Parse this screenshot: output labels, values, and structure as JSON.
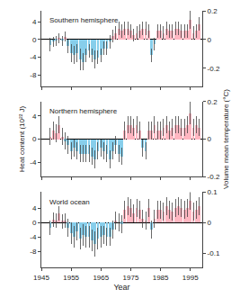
{
  "chart_data": [
    {
      "type": "bar",
      "title": "Southern hemisphere",
      "x": [
        1948,
        1949,
        1950,
        1951,
        1952,
        1953,
        1954,
        1955,
        1956,
        1957,
        1958,
        1959,
        1960,
        1961,
        1962,
        1963,
        1964,
        1965,
        1966,
        1967,
        1968,
        1969,
        1970,
        1971,
        1972,
        1973,
        1974,
        1975,
        1976,
        1977,
        1978,
        1979,
        1980,
        1981,
        1982,
        1983,
        1984,
        1985,
        1986,
        1987,
        1988,
        1989,
        1990,
        1991,
        1992,
        1993,
        1994,
        1995,
        1996,
        1997,
        1998
      ],
      "values": [
        -1.2,
        -0.5,
        -0.3,
        0.3,
        -0.3,
        0.7,
        -1.5,
        -3.0,
        -3.5,
        -3.0,
        -4.5,
        -5.0,
        -3.5,
        -2.5,
        -3.5,
        -4.5,
        -4.0,
        -3.5,
        -2.0,
        -2.0,
        -0.5,
        0.8,
        1.5,
        2.5,
        2.0,
        2.5,
        2.5,
        2.0,
        1.0,
        1.5,
        2.0,
        2.5,
        2.5,
        2.0,
        -3.5,
        -1.0,
        2.0,
        2.0,
        1.5,
        2.5,
        2.0,
        2.0,
        2.5,
        2.5,
        2.0,
        2.0,
        2.0,
        4.5,
        1.5,
        2.0,
        3.5
      ],
      "errors": [
        1.5,
        1.2,
        1.2,
        1.2,
        1.2,
        1.2,
        1.5,
        2.0,
        2.0,
        2.0,
        2.5,
        2.0,
        1.5,
        1.5,
        1.5,
        2.0,
        1.5,
        1.5,
        1.5,
        1.5,
        1.5,
        1.5,
        1.5,
        1.5,
        1.5,
        1.5,
        1.5,
        1.5,
        1.5,
        1.5,
        1.5,
        1.5,
        1.5,
        1.5,
        1.5,
        1.5,
        1.5,
        1.5,
        1.5,
        1.5,
        1.5,
        1.5,
        1.5,
        1.5,
        1.5,
        1.5,
        1.5,
        2.0,
        1.5,
        1.5,
        1.5
      ],
      "colors": [
        "#87CEEB",
        "#87CEEB",
        "#87CEEB",
        "#FFB6C1",
        "#87CEEB",
        "#FFB6C1",
        "#87CEEB",
        "#87CEEB",
        "#87CEEB",
        "#87CEEB",
        "#87CEEB",
        "#87CEEB",
        "#87CEEB",
        "#87CEEB",
        "#87CEEB",
        "#87CEEB",
        "#87CEEB",
        "#87CEEB",
        "#87CEEB",
        "#87CEEB",
        "#87CEEB",
        "#FFB6C1",
        "#FFB6C1",
        "#FFB6C1",
        "#FFB6C1",
        "#FFB6C1",
        "#FFB6C1",
        "#FFB6C1",
        "#FFB6C1",
        "#FFB6C1",
        "#FFB6C1",
        "#FFB6C1",
        "#FFB6C1",
        "#FFB6C1",
        "#87CEEB",
        "#87CEEB",
        "#FFB6C1",
        "#FFB6C1",
        "#FFB6C1",
        "#FFB6C1",
        "#FFB6C1",
        "#FFB6C1",
        "#FFB6C1",
        "#FFB6C1",
        "#FFB6C1",
        "#FFB6C1",
        "#FFB6C1",
        "#FFB6C1",
        "#FFB6C1",
        "#FFB6C1",
        "#FFB6C1"
      ],
      "xlim": [
        1945,
        1999
      ],
      "xticks": [
        1945,
        1955,
        1965,
        1975,
        1985,
        1995
      ],
      "ylim": [
        -10.5,
        6.5
      ],
      "yticks": [
        -8,
        -4,
        0,
        4
      ],
      "y2lim": [
        -0.3230769230769231,
        0.2
      ],
      "y2ticks": [
        -0.2,
        0,
        0.2
      ],
      "grid": false,
      "tick_labels": "y"
    },
    {
      "type": "bar",
      "title": "Northern hemisphere",
      "ylabel": "Heat content (10²² J)",
      "y2label": "Volume mean temperature (°C)",
      "x": [
        1948,
        1949,
        1950,
        1951,
        1952,
        1953,
        1954,
        1955,
        1956,
        1957,
        1958,
        1959,
        1960,
        1961,
        1962,
        1963,
        1964,
        1965,
        1966,
        1967,
        1968,
        1969,
        1970,
        1971,
        1972,
        1973,
        1974,
        1975,
        1976,
        1977,
        1978,
        1979,
        1980,
        1981,
        1982,
        1983,
        1984,
        1985,
        1986,
        1987,
        1988,
        1989,
        1990,
        1991,
        1992,
        1993,
        1994,
        1995,
        1996,
        1997,
        1998
      ],
      "values": [
        0.5,
        1.5,
        1.0,
        2.5,
        0.5,
        -0.3,
        -1.0,
        -2.0,
        -1.5,
        -2.0,
        -2.5,
        -2.5,
        -2.5,
        -2.5,
        -3.0,
        -3.5,
        -2.0,
        -1.5,
        -2.0,
        -2.5,
        -3.5,
        -2.0,
        -1.0,
        -2.5,
        -3.0,
        1.5,
        2.5,
        2.5,
        2.0,
        2.5,
        1.5,
        -1.5,
        -2.0,
        1.5,
        1.5,
        2.5,
        1.5,
        1.5,
        2.0,
        2.5,
        1.5,
        2.0,
        2.5,
        2.5,
        2.0,
        2.0,
        2.5,
        4.5,
        2.0,
        2.5,
        2.0
      ],
      "errors": [
        1.5,
        1.5,
        1.5,
        1.5,
        1.5,
        1.5,
        1.5,
        1.5,
        1.5,
        1.5,
        1.5,
        1.5,
        1.5,
        1.5,
        1.5,
        1.5,
        1.5,
        1.5,
        1.5,
        1.5,
        1.5,
        1.5,
        1.5,
        1.5,
        1.5,
        1.5,
        1.5,
        1.5,
        1.5,
        1.5,
        1.5,
        1.5,
        1.5,
        1.5,
        1.5,
        1.5,
        1.5,
        1.5,
        1.5,
        1.5,
        1.5,
        1.5,
        1.5,
        1.5,
        1.5,
        1.5,
        1.5,
        2.0,
        1.5,
        1.5,
        1.5
      ],
      "colors": [
        "#FFB6C1",
        "#FFB6C1",
        "#FFB6C1",
        "#FFB6C1",
        "#FFB6C1",
        "#87CEEB",
        "#87CEEB",
        "#87CEEB",
        "#87CEEB",
        "#87CEEB",
        "#87CEEB",
        "#87CEEB",
        "#87CEEB",
        "#87CEEB",
        "#87CEEB",
        "#87CEEB",
        "#87CEEB",
        "#87CEEB",
        "#87CEEB",
        "#87CEEB",
        "#87CEEB",
        "#87CEEB",
        "#87CEEB",
        "#87CEEB",
        "#87CEEB",
        "#FFB6C1",
        "#FFB6C1",
        "#FFB6C1",
        "#FFB6C1",
        "#FFB6C1",
        "#FFB6C1",
        "#87CEEB",
        "#87CEEB",
        "#FFB6C1",
        "#FFB6C1",
        "#FFB6C1",
        "#FFB6C1",
        "#FFB6C1",
        "#FFB6C1",
        "#FFB6C1",
        "#FFB6C1",
        "#FFB6C1",
        "#FFB6C1",
        "#FFB6C1",
        "#FFB6C1",
        "#FFB6C1",
        "#FFB6C1",
        "#FFB6C1",
        "#FFB6C1",
        "#FFB6C1",
        "#FFB6C1"
      ],
      "xlim": [
        1945,
        1999
      ],
      "xticks": [
        1945,
        1955,
        1965,
        1975,
        1985,
        1995
      ],
      "ylim": [
        -6.5,
        6.5
      ],
      "yticks": [
        -4,
        0,
        4
      ],
      "y2lim": [
        -0.2,
        0.2
      ],
      "y2ticks": [
        -0.2,
        0,
        0.2
      ],
      "grid": false,
      "tick_labels": "y"
    },
    {
      "type": "bar",
      "title": "World ocean",
      "xlabel": "Year",
      "x": [
        1948,
        1949,
        1950,
        1951,
        1952,
        1953,
        1954,
        1955,
        1956,
        1957,
        1958,
        1959,
        1960,
        1961,
        1962,
        1963,
        1964,
        1965,
        1966,
        1967,
        1968,
        1969,
        1970,
        1971,
        1972,
        1973,
        1974,
        1975,
        1976,
        1977,
        1978,
        1979,
        1980,
        1981,
        1982,
        1983,
        1984,
        1985,
        1986,
        1987,
        1988,
        1989,
        1990,
        1991,
        1992,
        1993,
        1994,
        1995,
        1996,
        1997,
        1998
      ],
      "values": [
        -1.5,
        0.8,
        0.5,
        2.5,
        0.3,
        0.5,
        -1.5,
        -3.0,
        -4.0,
        -2.5,
        -4.5,
        -3.5,
        -4.0,
        -4.0,
        -5.0,
        -6.0,
        -4.5,
        -4.0,
        -3.5,
        -4.0,
        -4.0,
        -2.0,
        0.5,
        0.0,
        -0.5,
        3.5,
        4.5,
        4.0,
        2.5,
        4.0,
        3.5,
        1.0,
        0.5,
        4.0,
        -2.0,
        1.0,
        3.5,
        3.5,
        3.0,
        4.5,
        3.5,
        3.0,
        4.0,
        4.5,
        4.0,
        3.5,
        4.0,
        6.0,
        3.0,
        3.5,
        4.5
      ],
      "errors": [
        2.0,
        2.0,
        2.0,
        2.0,
        2.0,
        2.0,
        2.5,
        3.0,
        3.0,
        2.5,
        3.0,
        3.0,
        3.0,
        3.0,
        3.0,
        3.5,
        3.0,
        3.0,
        2.5,
        2.5,
        2.5,
        2.5,
        2.5,
        2.5,
        2.5,
        2.5,
        2.5,
        2.5,
        2.5,
        2.5,
        2.5,
        2.5,
        2.5,
        2.5,
        2.5,
        2.5,
        2.5,
        2.5,
        2.5,
        2.5,
        2.5,
        2.5,
        2.5,
        2.5,
        2.5,
        2.5,
        2.5,
        2.5,
        2.5,
        2.5,
        2.5
      ],
      "colors": [
        "#87CEEB",
        "#FFB6C1",
        "#FFB6C1",
        "#FFB6C1",
        "#FFB6C1",
        "#FFB6C1",
        "#87CEEB",
        "#87CEEB",
        "#87CEEB",
        "#87CEEB",
        "#87CEEB",
        "#87CEEB",
        "#87CEEB",
        "#87CEEB",
        "#87CEEB",
        "#87CEEB",
        "#87CEEB",
        "#87CEEB",
        "#87CEEB",
        "#87CEEB",
        "#87CEEB",
        "#87CEEB",
        "#FFB6C1",
        "#FFB6C1",
        "#87CEEB",
        "#FFB6C1",
        "#FFB6C1",
        "#FFB6C1",
        "#FFB6C1",
        "#FFB6C1",
        "#FFB6C1",
        "#FFB6C1",
        "#FFB6C1",
        "#FFB6C1",
        "#87CEEB",
        "#FFB6C1",
        "#FFB6C1",
        "#FFB6C1",
        "#FFB6C1",
        "#FFB6C1",
        "#FFB6C1",
        "#FFB6C1",
        "#FFB6C1",
        "#FFB6C1",
        "#FFB6C1",
        "#FFB6C1",
        "#FFB6C1",
        "#FFB6C1",
        "#FFB6C1",
        "#FFB6C1",
        "#FFB6C1"
      ],
      "xlim": [
        1945,
        1999
      ],
      "xticks": [
        1945,
        1955,
        1965,
        1975,
        1985,
        1995
      ],
      "ylim": [
        -12.5,
        8.5
      ],
      "yticks": [
        -8,
        -4,
        0,
        4
      ],
      "y2lim": [
        -0.14705882352941177,
        0.1
      ],
      "y2ticks": [
        -0.1,
        0,
        0.1
      ],
      "grid": false
    }
  ]
}
